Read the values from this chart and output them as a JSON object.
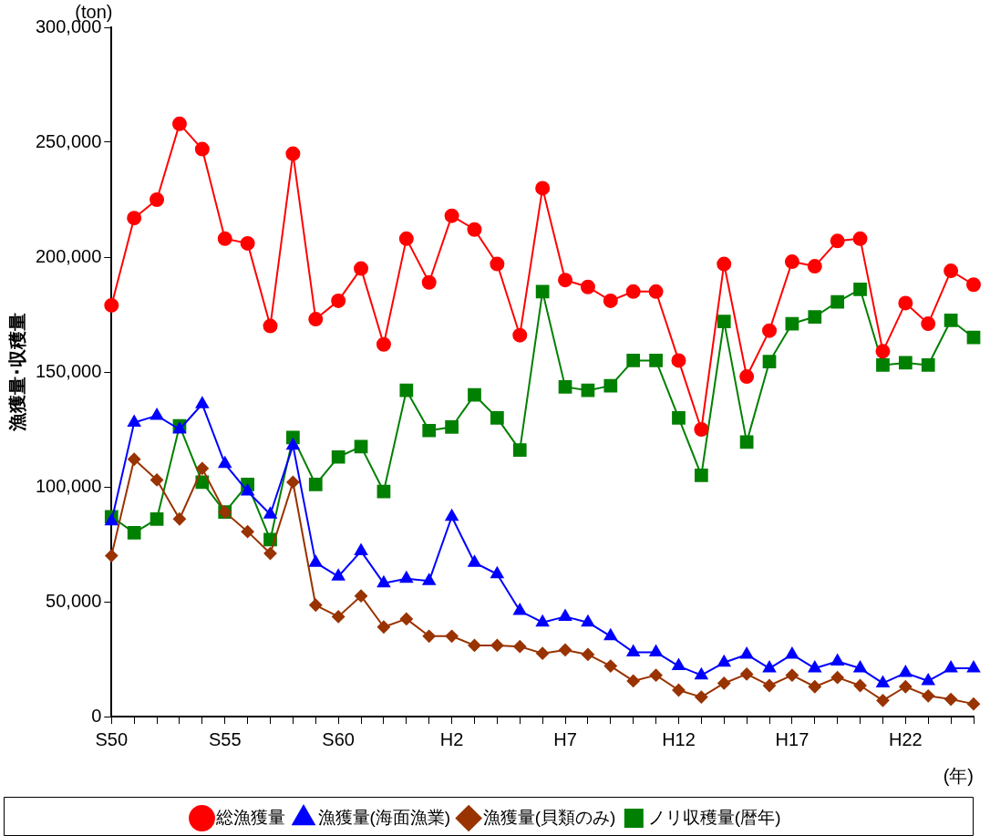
{
  "chart_data": {
    "type": "line",
    "ylabel": "漁獲量･収穫量",
    "xlabel": "(年)",
    "annotations": [
      "(ton)"
    ],
    "categories": [
      "S50",
      null,
      null,
      null,
      null,
      "S55",
      null,
      null,
      null,
      null,
      "S60",
      null,
      null,
      null,
      null,
      "H2",
      null,
      null,
      null,
      null,
      "H7",
      null,
      null,
      null,
      null,
      "H12",
      null,
      null,
      null,
      null,
      "H17",
      null,
      null,
      null,
      null,
      "H22",
      null,
      null,
      null
    ],
    "ylim": [
      0,
      300000
    ],
    "yticks": [
      0,
      {
        "value": 50000,
        "label": "50,000"
      },
      {
        "value": 100000,
        "label": "100,000"
      },
      {
        "value": 150000,
        "label": "150,000"
      },
      {
        "value": 200000,
        "label": "200,000"
      },
      {
        "value": 250000,
        "label": "250,000"
      },
      {
        "value": 300000,
        "label": "300,000"
      }
    ],
    "grid": false,
    "legend": "bottom",
    "line_style": "solid",
    "series": [
      {
        "name": "総漁獲量",
        "color": "#ff0000",
        "marker": "circle",
        "values": [
          179000,
          217000,
          225000,
          258000,
          247000,
          208000,
          206000,
          170000,
          245000,
          173000,
          181000,
          195000,
          162000,
          208000,
          189000,
          218000,
          212000,
          197000,
          166000,
          230000,
          190000,
          187000,
          181000,
          185000,
          185000,
          155000,
          125000,
          197000,
          148000,
          168000,
          198000,
          196000,
          207000,
          208000,
          159000,
          180000,
          171000,
          194000,
          188000
        ]
      },
      {
        "name": "漁獲量(海面漁業)",
        "color": "#0000ff",
        "marker": "triangle",
        "values": [
          85000,
          128000,
          131000,
          125000,
          136000,
          110000,
          98000,
          88000,
          118000,
          67000,
          61000,
          72000,
          58000,
          60000,
          59000,
          87000,
          67000,
          62000,
          46000,
          41000,
          43500,
          41000,
          35000,
          28000,
          28000,
          22000,
          18000,
          23500,
          27000,
          21000,
          27000,
          21000,
          24000,
          21000,
          14500,
          19000,
          15500,
          21000,
          21000
        ]
      },
      {
        "name": "漁獲量(貝類のみ)",
        "color": "#993300",
        "marker": "diamond",
        "values": [
          70000,
          112000,
          103000,
          86000,
          108000,
          89000,
          80500,
          71000,
          102000,
          48500,
          43500,
          52500,
          39000,
          42500,
          35000,
          35000,
          31000,
          31000,
          30500,
          27500,
          29000,
          27000,
          22000,
          15500,
          18000,
          11500,
          8500,
          14500,
          18500,
          13500,
          18000,
          13000,
          17000,
          13500,
          7000,
          13000,
          9000,
          7500,
          5500
        ]
      },
      {
        "name": "ノリ収穫量(暦年)",
        "color": "#008000",
        "marker": "square",
        "values": [
          87000,
          80000,
          86000,
          126500,
          102000,
          89000,
          101000,
          77000,
          121500,
          101000,
          113000,
          117500,
          98000,
          142000,
          124500,
          126000,
          140000,
          130000,
          116000,
          185000,
          143500,
          142000,
          144000,
          155000,
          155000,
          130000,
          105000,
          172000,
          119500,
          154500,
          171000,
          174000,
          180500,
          186000,
          153000,
          154000,
          153000,
          172500,
          165000
        ]
      }
    ]
  }
}
